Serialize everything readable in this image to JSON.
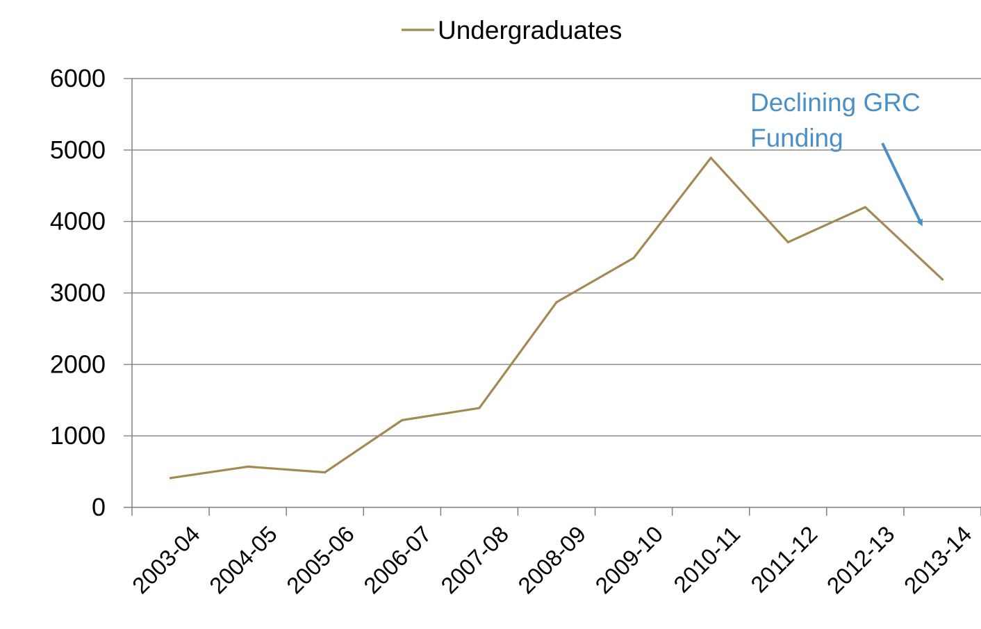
{
  "chart_data": {
    "type": "line",
    "title": "",
    "xlabel": "",
    "ylabel": "",
    "categories": [
      "2003-04",
      "2004-05",
      "2005-06",
      "2006-07",
      "2007-08",
      "2008-09",
      "2009-10",
      "2010-11",
      "2011-12",
      "2012-13",
      "2013-14"
    ],
    "series": [
      {
        "name": "Undergraduates",
        "color": "#a28a52",
        "values": [
          410,
          570,
          490,
          1220,
          1390,
          2870,
          3490,
          4890,
          3710,
          4200,
          3190
        ]
      }
    ],
    "ylim": [
      0,
      6000
    ],
    "yticks": [
      0,
      1000,
      2000,
      3000,
      4000,
      5000,
      6000
    ],
    "grid": true,
    "legend_position": "top-center",
    "annotation": {
      "lines": [
        "Declining GRC",
        "Funding"
      ],
      "color": "#4a8fc7"
    }
  }
}
